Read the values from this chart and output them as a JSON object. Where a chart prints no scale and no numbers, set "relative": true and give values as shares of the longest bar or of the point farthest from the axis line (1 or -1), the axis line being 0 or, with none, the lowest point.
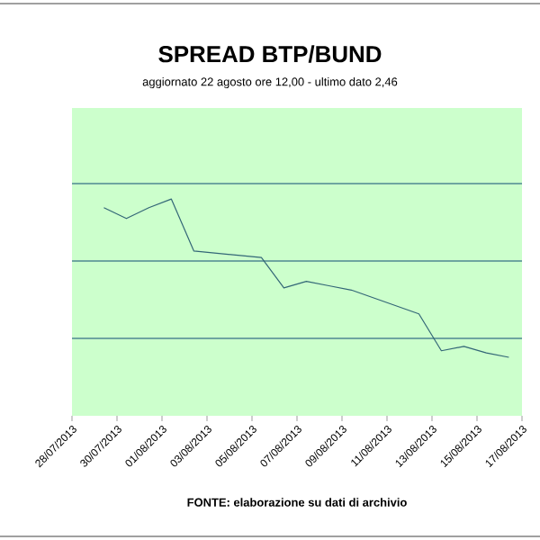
{
  "chart_data": {
    "type": "line",
    "title": "SPREAD BTP/BUND",
    "subtitle": "aggiornato 22 agosto ore 12,00 - ultimo dato 2,46",
    "annotations": [
      "FONTE: elaborazione su dati di archivio"
    ],
    "relative": true,
    "ref_lines": [
      {
        "axis": "y",
        "value": 0.357,
        "color": "#6ea5a0"
      },
      {
        "axis": "y",
        "value": 0.714,
        "color": "#6ea5a0"
      },
      {
        "axis": "y",
        "value": 1.071,
        "color": "#6ea5a0"
      }
    ],
    "marker": "none",
    "line_style": "solid",
    "xlim": [
      "2013-07-28",
      "2013-08-17"
    ],
    "xticks": [
      {
        "value": "2013-07-28",
        "label": "28/07/2013"
      },
      {
        "value": "2013-07-30",
        "label": "30/07/2013"
      },
      {
        "value": "2013-08-01",
        "label": "01/08/2013"
      },
      {
        "value": "2013-08-03",
        "label": "03/08/2013"
      },
      {
        "value": "2013-08-05",
        "label": "05/08/2013"
      },
      {
        "value": "2013-08-07",
        "label": "07/08/2013"
      },
      {
        "value": "2013-08-09",
        "label": "09/08/2013"
      },
      {
        "value": "2013-08-11",
        "label": "11/08/2013"
      },
      {
        "value": "2013-08-13",
        "label": "13/08/2013"
      },
      {
        "value": "2013-08-15",
        "label": "15/08/2013"
      },
      {
        "value": "2013-08-17",
        "label": "17/08/2013"
      }
    ],
    "series": [
      {
        "color": "#336677",
        "x": [
          "2013-07-29T10:00",
          "2013-07-30T10:00",
          "2013-07-31T10:00",
          "2013-08-01T10:00",
          "2013-08-02T10:00",
          "2013-08-05T10:00",
          "2013-08-06T10:00",
          "2013-08-07T10:00",
          "2013-08-08T10:00",
          "2013-08-09T10:00",
          "2013-08-12T10:00",
          "2013-08-13T10:00",
          "2013-08-14T10:00",
          "2013-08-15T10:00",
          "2013-08-16T10:00"
        ],
        "values": [
          0.96,
          0.91,
          0.96,
          1,
          0.76,
          0.73,
          0.59,
          0.62,
          0.6,
          0.58,
          0.47,
          0.3,
          0.32,
          0.29,
          0.27
        ]
      }
    ]
  }
}
